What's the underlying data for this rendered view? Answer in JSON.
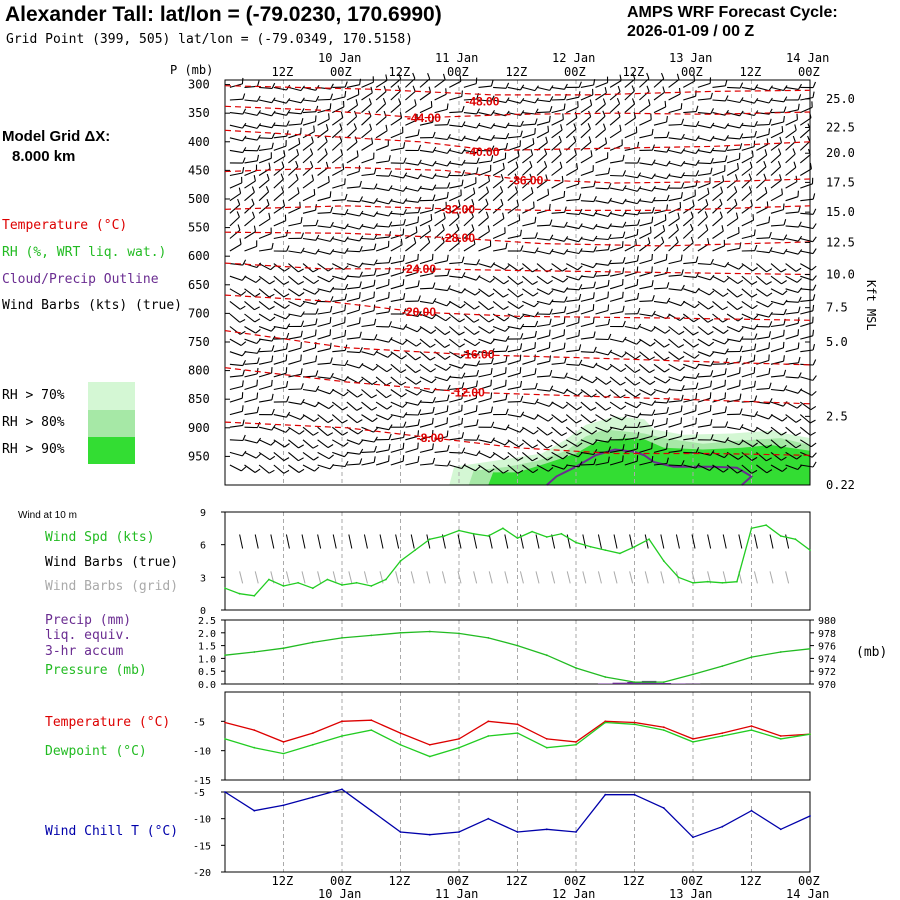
{
  "header": {
    "title": "Alexander Tall:  lat/lon = (-79.0230, 170.6990)",
    "grid_point": "Grid Point (399, 505) lat/lon = (-79.0349, 170.5158)",
    "cycle_line1": "AMPS WRF Forecast Cycle:",
    "cycle_line2": "2026-01-09 / 00  Z"
  },
  "model_grid": {
    "line1": "Model Grid ΔX:",
    "line2": "8.000 km"
  },
  "legend": {
    "temperature": "Temperature (°C)",
    "rh": "RH (%, WRT liq. wat.)",
    "cloud": "Cloud/Precip Outline",
    "wind_barbs": "Wind Barbs (kts) (true)",
    "rh70": "RH > 70%",
    "rh80": "RH > 80%",
    "rh90": "RH > 90%"
  },
  "colors": {
    "temperature": "#dd0000",
    "rh": "#22bb22",
    "cloud": "#6a2c91",
    "rh70": "#d4f7d4",
    "rh80": "#a6e8a6",
    "rh90": "#33dd33",
    "grid": "#aaaaaa",
    "wind_speed": "#22cc22",
    "dewpoint": "#22cc22",
    "wind_chill": "#0000aa",
    "precip": "#6a2c91",
    "barbs_grid": "#aaaaaa"
  },
  "p_axis_label": "P (mb)",
  "kft_label": "Kft MSL",
  "panel_labels": {
    "wind10m": "Wind at 10 m",
    "wind_spd": "Wind Spd (kts)",
    "wind_barbs_true": "Wind Barbs (true)",
    "wind_barbs_grid": "Wind Barbs (grid)",
    "precip1": "Precip (mm)",
    "precip2": "liq. equiv.",
    "precip3": "3-hr accum",
    "pressure": "Pressure (mb)",
    "pressure_unit": "(mb)",
    "temp": "Temperature (°C)",
    "dewpoint": "Dewpoint (°C)",
    "windchill": "Wind Chill T (°C)"
  },
  "chart_data": {
    "time_axis": {
      "hours_range": [
        0,
        120
      ],
      "top_ticks": [
        {
          "h": 12,
          "label": "12Z"
        },
        {
          "h": 24,
          "label": "00Z"
        },
        {
          "h": 36,
          "label": "12Z"
        },
        {
          "h": 48,
          "label": "00Z"
        },
        {
          "h": 60,
          "label": "12Z"
        },
        {
          "h": 72,
          "label": "00Z"
        },
        {
          "h": 84,
          "label": "12Z"
        },
        {
          "h": 96,
          "label": "00Z"
        },
        {
          "h": 108,
          "label": "12Z"
        },
        {
          "h": 120,
          "label": "00Z"
        }
      ],
      "dates": [
        {
          "h": 24,
          "label": "10 Jan"
        },
        {
          "h": 48,
          "label": "11 Jan"
        },
        {
          "h": 72,
          "label": "12 Jan"
        },
        {
          "h": 96,
          "label": "13 Jan"
        },
        {
          "h": 120,
          "label": "14 Jan"
        }
      ]
    },
    "profile": {
      "type": "time-height cross section",
      "pressure_levels": [
        300,
        350,
        400,
        450,
        500,
        550,
        600,
        650,
        700,
        750,
        800,
        850,
        900,
        950
      ],
      "height_labels": [
        {
          "p": 325,
          "label": "25.0"
        },
        {
          "p": 375,
          "label": "22.5"
        },
        {
          "p": 420,
          "label": "20.0"
        },
        {
          "p": 471,
          "label": "17.5"
        },
        {
          "p": 523,
          "label": "15.0"
        },
        {
          "p": 576,
          "label": "12.5"
        },
        {
          "p": 632,
          "label": "10.0"
        },
        {
          "p": 690,
          "label": "7.5"
        },
        {
          "p": 750,
          "label": "5.0"
        },
        {
          "p": 880,
          "label": "2.5"
        },
        {
          "p": 1000,
          "label": "0.22"
        }
      ],
      "temperature_labels": [
        {
          "h": 53,
          "p": 330,
          "label": "-48.00"
        },
        {
          "h": 41,
          "p": 358,
          "label": "-44.00"
        },
        {
          "h": 53,
          "p": 418,
          "label": "-40.00"
        },
        {
          "h": 62,
          "p": 468,
          "label": "-36.00"
        },
        {
          "h": 48,
          "p": 518,
          "label": "-32.00"
        },
        {
          "h": 48,
          "p": 568,
          "label": "-28.00"
        },
        {
          "h": 40,
          "p": 622,
          "label": "-24.00"
        },
        {
          "h": 40,
          "p": 698,
          "label": "-20.00"
        },
        {
          "h": 52,
          "p": 772,
          "label": "-16.00"
        },
        {
          "h": 50,
          "p": 838,
          "label": "-12.00"
        },
        {
          "h": 43,
          "p": 918,
          "label": "-8.00"
        }
      ],
      "temperature_isotherms": [
        {
          "label": "-48",
          "pts": [
            [
              0,
              302
            ],
            [
              30,
              308
            ],
            [
              55,
              318
            ],
            [
              75,
              318
            ],
            [
              100,
              312
            ],
            [
              120,
              310
            ]
          ]
        },
        {
          "label": "-44",
          "pts": [
            [
              0,
              338
            ],
            [
              20,
              345
            ],
            [
              40,
              358
            ],
            [
              60,
              352
            ],
            [
              80,
              350
            ],
            [
              100,
              352
            ],
            [
              120,
              348
            ]
          ]
        },
        {
          "label": "-40",
          "pts": [
            [
              0,
              380
            ],
            [
              20,
              390
            ],
            [
              40,
              400
            ],
            [
              55,
              415
            ],
            [
              75,
              412
            ],
            [
              100,
              408
            ],
            [
              120,
              400
            ]
          ]
        },
        {
          "label": "-36",
          "pts": [
            [
              0,
              452
            ],
            [
              25,
              445
            ],
            [
              45,
              450
            ],
            [
              60,
              465
            ],
            [
              80,
              472
            ],
            [
              100,
              470
            ],
            [
              120,
              465
            ]
          ]
        },
        {
          "label": "-32",
          "pts": [
            [
              0,
              518
            ],
            [
              25,
              512
            ],
            [
              45,
              517
            ],
            [
              65,
              520
            ],
            [
              90,
              520
            ],
            [
              120,
              512
            ]
          ]
        },
        {
          "label": "-28",
          "pts": [
            [
              0,
              558
            ],
            [
              25,
              560
            ],
            [
              47,
              568
            ],
            [
              65,
              578
            ],
            [
              90,
              582
            ],
            [
              120,
              575
            ]
          ]
        },
        {
          "label": "-24",
          "pts": [
            [
              0,
              612
            ],
            [
              20,
              622
            ],
            [
              40,
              622
            ],
            [
              60,
              625
            ],
            [
              85,
              628
            ],
            [
              120,
              632
            ]
          ]
        },
        {
          "label": "-20",
          "pts": [
            [
              0,
              668
            ],
            [
              20,
              678
            ],
            [
              40,
              698
            ],
            [
              60,
              705
            ],
            [
              90,
              708
            ],
            [
              120,
              712
            ]
          ]
        },
        {
          "label": "-16",
          "pts": [
            [
              0,
              730
            ],
            [
              25,
              760
            ],
            [
              50,
              772
            ],
            [
              75,
              778
            ],
            [
              100,
              785
            ],
            [
              120,
              790
            ]
          ]
        },
        {
          "label": "-12",
          "pts": [
            [
              0,
              795
            ],
            [
              25,
              820
            ],
            [
              50,
              838
            ],
            [
              75,
              845
            ],
            [
              100,
              852
            ],
            [
              120,
              858
            ]
          ]
        },
        {
          "label": "-8",
          "pts": [
            [
              0,
              890
            ],
            [
              25,
              900
            ],
            [
              43,
              918
            ],
            [
              60,
              935
            ],
            [
              80,
              945
            ],
            [
              100,
              945
            ],
            [
              120,
              948
            ]
          ]
        }
      ],
      "rh_regions": [
        {
          "level": "rh70",
          "pts": [
            [
              46,
              1000
            ],
            [
              47,
              968
            ],
            [
              55,
              958
            ],
            [
              65,
              945
            ],
            [
              70,
              920
            ],
            [
              74,
              895
            ],
            [
              80,
              880
            ],
            [
              86,
              885
            ],
            [
              88,
              903
            ],
            [
              94,
              912
            ],
            [
              104,
              910
            ],
            [
              112,
              905
            ],
            [
              120,
              918
            ],
            [
              120,
              1000
            ]
          ]
        },
        {
          "level": "rh80",
          "pts": [
            [
              50,
              1000
            ],
            [
              51,
              975
            ],
            [
              58,
              968
            ],
            [
              64,
              958
            ],
            [
              70,
              940
            ],
            [
              74,
              915
            ],
            [
              78,
              903
            ],
            [
              86,
              910
            ],
            [
              90,
              918
            ],
            [
              98,
              928
            ],
            [
              106,
              922
            ],
            [
              114,
              918
            ],
            [
              120,
              930
            ],
            [
              120,
              1000
            ]
          ]
        },
        {
          "level": "rh90",
          "pts": [
            [
              54,
              1000
            ],
            [
              55,
              978
            ],
            [
              60,
              978
            ],
            [
              66,
              962
            ],
            [
              72,
              945
            ],
            [
              76,
              925
            ],
            [
              82,
              918
            ],
            [
              86,
              920
            ],
            [
              90,
              935
            ],
            [
              98,
              938
            ],
            [
              106,
              935
            ],
            [
              112,
              930
            ],
            [
              120,
              940
            ],
            [
              120,
              1000
            ]
          ]
        }
      ],
      "cloud_outline": [
        [
          66,
          1000
        ],
        [
          68,
          985
        ],
        [
          72,
          968
        ],
        [
          76,
          948
        ],
        [
          80,
          938
        ],
        [
          84,
          942
        ],
        [
          86,
          948
        ],
        [
          88,
          960
        ],
        [
          92,
          968
        ],
        [
          100,
          968
        ],
        [
          105,
          970
        ],
        [
          108,
          985
        ],
        [
          106,
          1000
        ]
      ]
    },
    "wind_speed": {
      "type": "line",
      "ylim": [
        0,
        9
      ],
      "yticks": [
        0,
        3,
        6,
        9
      ],
      "x": [
        0,
        3,
        6,
        9,
        12,
        15,
        18,
        21,
        24,
        27,
        30,
        33,
        36,
        39,
        42,
        45,
        48,
        51,
        54,
        57,
        60,
        63,
        66,
        69,
        72,
        75,
        78,
        81,
        84,
        87,
        90,
        93,
        96,
        99,
        102,
        105,
        108,
        111,
        114,
        117,
        120
      ],
      "values": [
        2.0,
        1.5,
        1.3,
        2.8,
        2.2,
        2.5,
        2.0,
        2.8,
        2.3,
        2.5,
        2.2,
        2.8,
        4.5,
        5.5,
        6.5,
        6.8,
        7.3,
        7.0,
        6.8,
        7.5,
        6.6,
        7.2,
        6.7,
        7.0,
        6.2,
        5.8,
        5.5,
        5.2,
        5.8,
        6.5,
        4.5,
        3.0,
        2.5,
        2.6,
        2.5,
        2.6,
        7.5,
        7.8,
        6.8,
        6.5,
        5.5
      ]
    },
    "pressure": {
      "type": "line",
      "ylim": [
        970,
        980
      ],
      "yticks": [
        970,
        972,
        974,
        976,
        978,
        980
      ],
      "x": [
        0,
        6,
        12,
        18,
        24,
        30,
        36,
        42,
        48,
        54,
        60,
        66,
        72,
        78,
        84,
        90,
        96,
        102,
        108,
        114,
        120
      ],
      "values": [
        974.5,
        975.0,
        975.6,
        976.5,
        977.2,
        977.6,
        978.0,
        978.2,
        977.9,
        977.2,
        976.0,
        974.5,
        972.5,
        971.1,
        970.3,
        970.3,
        971.5,
        972.8,
        974.2,
        975.0,
        975.5
      ]
    },
    "precip": {
      "type": "bar",
      "ylim": [
        0,
        2.5
      ],
      "yticks": [
        0.0,
        0.5,
        1.0,
        1.5,
        2.0,
        2.5
      ],
      "x": [
        78,
        81,
        84,
        87,
        90,
        93,
        96
      ],
      "values": [
        0.02,
        0.05,
        0.08,
        0.12,
        0.04,
        0.02,
        0.01
      ]
    },
    "temperature": {
      "type": "line",
      "ylim": [
        -15,
        0
      ],
      "yticks": [
        -5,
        -10,
        -15
      ],
      "x": [
        0,
        6,
        12,
        18,
        24,
        30,
        36,
        42,
        48,
        54,
        60,
        66,
        72,
        78,
        84,
        90,
        96,
        102,
        108,
        114,
        120
      ],
      "series": [
        {
          "name": "Temperature",
          "values": [
            -5.2,
            -6.5,
            -8.5,
            -7.0,
            -5.0,
            -4.8,
            -7.0,
            -9.0,
            -8.0,
            -5.0,
            -5.5,
            -8.0,
            -8.5,
            -5.0,
            -5.2,
            -6.0,
            -8.0,
            -7.0,
            -5.8,
            -7.5,
            -7.2
          ]
        },
        {
          "name": "Dewpoint",
          "values": [
            -8.0,
            -9.5,
            -10.5,
            -9.0,
            -7.5,
            -6.5,
            -9.0,
            -11.0,
            -9.5,
            -7.5,
            -7.0,
            -9.5,
            -9.0,
            -5.2,
            -5.5,
            -6.5,
            -8.5,
            -7.5,
            -6.5,
            -8.0,
            -7.2
          ]
        }
      ]
    },
    "wind_chill": {
      "type": "line",
      "ylim": [
        -20,
        -5
      ],
      "yticks": [
        -5,
        -10,
        -15,
        -20
      ],
      "x": [
        0,
        6,
        12,
        18,
        24,
        30,
        36,
        42,
        48,
        54,
        60,
        66,
        72,
        78,
        84,
        90,
        96,
        102,
        108,
        114,
        120
      ],
      "values": [
        -5.0,
        -8.5,
        -7.5,
        -6.0,
        -4.5,
        -8.5,
        -12.5,
        -13.0,
        -12.5,
        -10.0,
        -12.5,
        -12.0,
        -12.5,
        -5.5,
        -5.5,
        -8.0,
        -13.5,
        -11.5,
        -8.5,
        -12.0,
        -9.5
      ]
    }
  }
}
